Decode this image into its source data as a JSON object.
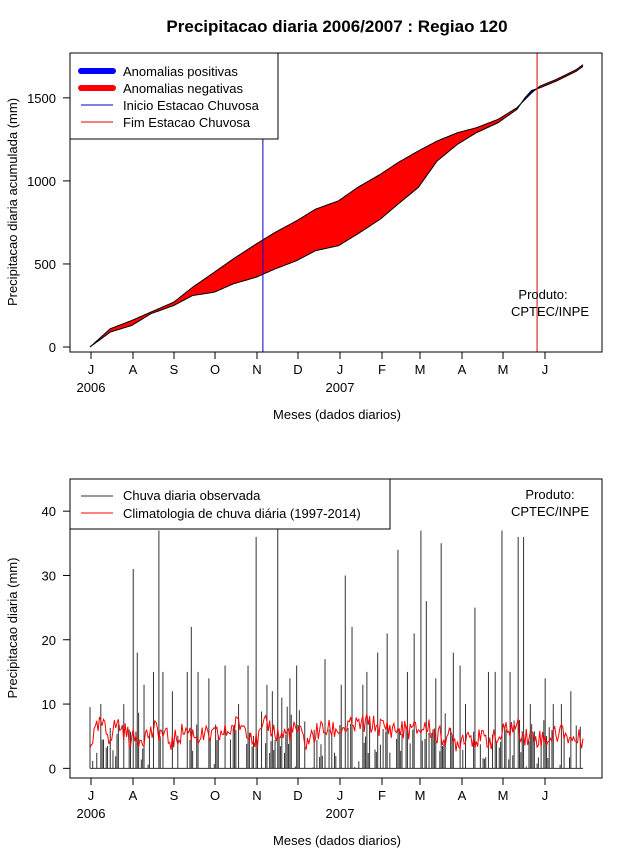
{
  "page_title": "Precipitacao diaria 2006/2007 : Regiao 120",
  "colors": {
    "positive": "#0000ff",
    "negative": "#ff0000",
    "start": "#0000cc",
    "end": "#dd0000",
    "observed": "#333333",
    "climatology": "#ff0000"
  },
  "chart_data": [
    {
      "type": "area",
      "name": "cumulative",
      "title": "Precipitacao diaria 2006/2007 : Regiao 120",
      "xlabel": "Meses (dados diarios)",
      "ylabel": "Precipitacao diaria acumulada (mm)",
      "ylim": [
        -30,
        1770
      ],
      "yticks": [
        0,
        500,
        1000,
        1500
      ],
      "month_labels": [
        "J",
        "A",
        "S",
        "O",
        "N",
        "D",
        "J",
        "F",
        "M",
        "A",
        "M",
        "J"
      ],
      "year_labels": [
        {
          "label": "2006",
          "month": 0
        },
        {
          "label": "2007",
          "month": 6
        }
      ],
      "legend": [
        "Anomalias positivas",
        "Anomalias negativas",
        "Inicio Estacao Chuvosa",
        "Fim Estacao Chuvosa"
      ],
      "note_lines": [
        "Produto:",
        "CPTEC/INPE"
      ],
      "onset_day": 128,
      "end_day": 331,
      "observed_cumulative": {
        "day": [
          0,
          15,
          31,
          45,
          62,
          76,
          92,
          106,
          123,
          137,
          153,
          167,
          184,
          198,
          215,
          228,
          243,
          257,
          272,
          286,
          302,
          316,
          322,
          327,
          333,
          345,
          360,
          365
        ],
        "value": [
          0,
          90,
          130,
          200,
          250,
          310,
          330,
          380,
          420,
          470,
          520,
          580,
          610,
          680,
          770,
          860,
          960,
          1120,
          1220,
          1290,
          1350,
          1430,
          1500,
          1545,
          1560,
          1600,
          1660,
          1690
        ]
      },
      "climatology_cumulative": {
        "day": [
          0,
          15,
          31,
          45,
          62,
          76,
          92,
          106,
          123,
          137,
          153,
          167,
          184,
          198,
          215,
          228,
          243,
          257,
          272,
          286,
          302,
          316,
          322,
          327,
          333,
          345,
          360,
          365
        ],
        "value": [
          0,
          110,
          160,
          210,
          270,
          360,
          450,
          530,
          620,
          690,
          760,
          830,
          880,
          960,
          1040,
          1110,
          1180,
          1240,
          1290,
          1320,
          1370,
          1440,
          1490,
          1530,
          1570,
          1610,
          1670,
          1700
        ]
      }
    },
    {
      "type": "line",
      "name": "daily",
      "xlabel": "Meses (dados diarios)",
      "ylabel": "Precipitacao diaria (mm)",
      "ylim": [
        -1.5,
        45
      ],
      "yticks": [
        0,
        10,
        20,
        30,
        40
      ],
      "month_labels": [
        "J",
        "A",
        "S",
        "O",
        "N",
        "D",
        "J",
        "F",
        "M",
        "A",
        "M",
        "J"
      ],
      "year_labels": [
        {
          "label": "2006",
          "month": 0
        },
        {
          "label": "2007",
          "month": 6
        }
      ],
      "legend": [
        "Chuva diaria observada",
        "Climatologia de chuva diária (1997-2014)"
      ],
      "note_lines": [
        "Produto:",
        "CPTEC/INPE"
      ],
      "observed_peaks": {
        "day": [
          8,
          25,
          32,
          35,
          40,
          47,
          51,
          54,
          61,
          72,
          75,
          80,
          88,
          100,
          110,
          117,
          123,
          131,
          135,
          139,
          142,
          148,
          153,
          166,
          174,
          186,
          189,
          194,
          202,
          205,
          213,
          220,
          228,
          235,
          240,
          245,
          249,
          256,
          260,
          269,
          274,
          278,
          285,
          295,
          300,
          305,
          311,
          317,
          321,
          326,
          337,
          343,
          349,
          356
        ],
        "value": [
          10,
          10,
          31,
          18,
          13,
          15,
          37,
          15,
          12,
          15,
          22,
          15,
          14,
          16,
          10,
          16,
          36,
          13,
          12,
          38,
          11,
          14,
          16,
          6,
          17,
          13,
          30,
          22,
          13,
          15,
          18,
          21,
          34,
          15,
          21,
          37,
          26,
          14,
          35,
          18,
          16,
          10,
          25,
          15,
          15,
          37,
          15,
          36,
          36,
          10,
          14,
          10,
          10,
          12
        ]
      },
      "climatology": {
        "day": [
          0,
          8,
          14,
          20,
          31,
          40,
          50,
          61,
          70,
          80,
          92,
          100,
          110,
          118,
          123,
          131,
          140,
          153,
          160,
          170,
          184,
          194,
          205,
          215,
          228,
          243,
          250,
          257,
          264,
          272,
          279,
          286,
          294,
          302,
          308,
          316,
          322,
          328,
          336,
          343,
          350,
          356,
          365
        ],
        "value": [
          4,
          7,
          5,
          7,
          4.5,
          5,
          6,
          4,
          6,
          5,
          5,
          5.5,
          7,
          6,
          4,
          7,
          5,
          6,
          4,
          6,
          6,
          6.5,
          7,
          6.5,
          6,
          6,
          6.5,
          5,
          5,
          4,
          5.5,
          4.5,
          4.5,
          4.5,
          6,
          6.5,
          5,
          5,
          4.5,
          5,
          6,
          4.5,
          4.5
        ]
      }
    }
  ]
}
